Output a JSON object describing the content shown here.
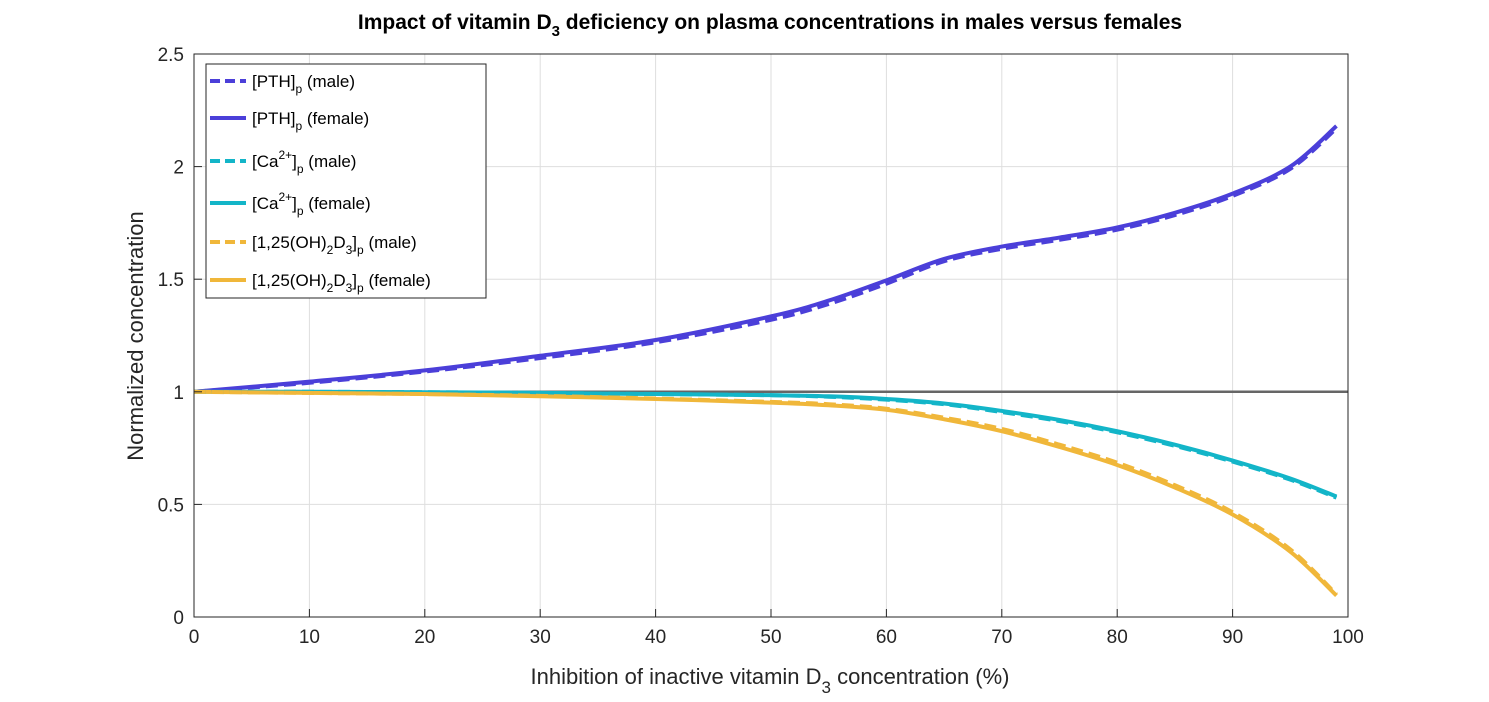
{
  "chart_data": {
    "type": "line",
    "title": {
      "pre": "Impact of vitamin D",
      "sub": "3",
      "post": " deficiency on plasma concentrations in males versus females"
    },
    "xlabel": {
      "pre": "Inhibition of inactive vitamin D",
      "sub": "3",
      "post": " concentration (%)"
    },
    "ylabel": "Normalized concentration",
    "xlim": [
      0,
      100
    ],
    "ylim": [
      0,
      2.5
    ],
    "xticks": [
      "0",
      "10",
      "20",
      "30",
      "40",
      "50",
      "60",
      "70",
      "80",
      "90",
      "100"
    ],
    "yticks": [
      "0",
      "0.5",
      "1",
      "1.5",
      "2",
      "2.5"
    ],
    "grid": true,
    "legend_position": "top-left",
    "reference_line": {
      "y": 1,
      "color": "#666666"
    },
    "x": [
      0,
      10,
      20,
      30,
      40,
      50,
      55,
      60,
      65,
      70,
      75,
      80,
      85,
      90,
      95,
      99
    ],
    "series": [
      {
        "key": "pth_male",
        "legend": {
          "segments": [
            {
              "t": "[PTH]"
            },
            {
              "t": "p",
              "sub": true
            },
            {
              "t": " (male)"
            }
          ]
        },
        "color": "#4b3fd9",
        "dash": true,
        "values": [
          1.0,
          1.04,
          1.09,
          1.15,
          1.22,
          1.32,
          1.39,
          1.48,
          1.58,
          1.635,
          1.675,
          1.72,
          1.785,
          1.87,
          1.99,
          2.17
        ]
      },
      {
        "key": "pth_female",
        "legend": {
          "segments": [
            {
              "t": "[PTH]"
            },
            {
              "t": "p",
              "sub": true
            },
            {
              "t": " (female)"
            }
          ]
        },
        "color": "#4b3fd9",
        "dash": false,
        "values": [
          1.0,
          1.045,
          1.095,
          1.16,
          1.23,
          1.335,
          1.405,
          1.495,
          1.59,
          1.645,
          1.685,
          1.73,
          1.795,
          1.88,
          2.0,
          2.18
        ]
      },
      {
        "key": "ca_male",
        "legend": {
          "segments": [
            {
              "t": "[Ca"
            },
            {
              "t": "2+",
              "sup": true
            },
            {
              "t": "]"
            },
            {
              "t": "p",
              "sub": true
            },
            {
              "t": " (male)"
            }
          ]
        },
        "color": "#13b5c8",
        "dash": true,
        "values": [
          1.0,
          1.0,
          0.998,
          0.995,
          0.99,
          0.985,
          0.978,
          0.965,
          0.945,
          0.91,
          0.87,
          0.82,
          0.76,
          0.69,
          0.61,
          0.53
        ]
      },
      {
        "key": "ca_female",
        "legend": {
          "segments": [
            {
              "t": "[Ca"
            },
            {
              "t": "2+",
              "sup": true
            },
            {
              "t": "]"
            },
            {
              "t": "p",
              "sub": true
            },
            {
              "t": " (female)"
            }
          ]
        },
        "color": "#13b5c8",
        "dash": false,
        "values": [
          1.0,
          1.0,
          0.998,
          0.995,
          0.99,
          0.985,
          0.98,
          0.968,
          0.948,
          0.915,
          0.875,
          0.825,
          0.765,
          0.695,
          0.615,
          0.535
        ]
      },
      {
        "key": "vitd_male",
        "legend": {
          "segments": [
            {
              "t": "[1,25(OH)"
            },
            {
              "t": "2",
              "sub": true
            },
            {
              "t": "D"
            },
            {
              "t": "3",
              "sub": true
            },
            {
              "t": "]"
            },
            {
              "t": "p",
              "sub": true
            },
            {
              "t": " (male)"
            }
          ]
        },
        "color": "#f0b73a",
        "dash": true,
        "values": [
          1.0,
          0.995,
          0.99,
          0.982,
          0.97,
          0.955,
          0.945,
          0.925,
          0.885,
          0.835,
          0.765,
          0.685,
          0.585,
          0.465,
          0.3,
          0.1
        ]
      },
      {
        "key": "vitd_female",
        "legend": {
          "segments": [
            {
              "t": "[1,25(OH)"
            },
            {
              "t": "2",
              "sub": true
            },
            {
              "t": "D"
            },
            {
              "t": "3",
              "sub": true
            },
            {
              "t": "]"
            },
            {
              "t": "p",
              "sub": true
            },
            {
              "t": " (female)"
            }
          ]
        },
        "color": "#f0b73a",
        "dash": false,
        "values": [
          1.0,
          0.995,
          0.99,
          0.98,
          0.968,
          0.952,
          0.94,
          0.92,
          0.878,
          0.825,
          0.755,
          0.675,
          0.575,
          0.455,
          0.29,
          0.095
        ]
      }
    ]
  }
}
